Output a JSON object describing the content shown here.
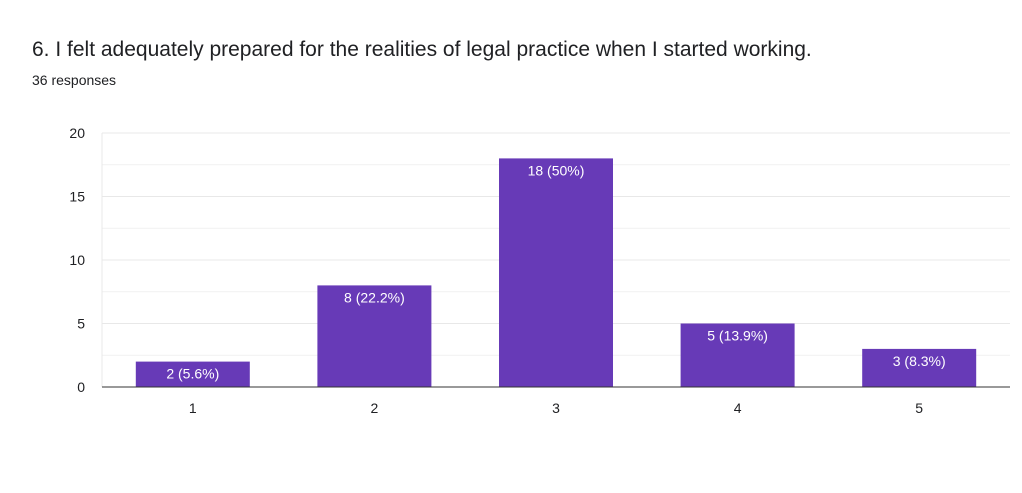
{
  "question": {
    "title": "6. I felt adequately prepared for the realities of legal practice when I started working.",
    "response_count": "36 responses"
  },
  "colors": {
    "bar": "#673ab7",
    "grid": "#e8e8e8",
    "axis": "#333333",
    "text": "#202124"
  },
  "chart_data": {
    "type": "bar",
    "categories": [
      "1",
      "2",
      "3",
      "4",
      "5"
    ],
    "values": [
      2,
      8,
      18,
      5,
      3
    ],
    "data_labels": [
      "2 (5.6%)",
      "8 (22.2%)",
      "18 (50%)",
      "5 (13.9%)",
      "3 (8.3%)"
    ],
    "yticks": [
      0,
      5,
      10,
      15,
      20
    ],
    "ylim": [
      0,
      20
    ],
    "grid": true,
    "minor_grid": true,
    "title": "",
    "xlabel": "",
    "ylabel": ""
  }
}
